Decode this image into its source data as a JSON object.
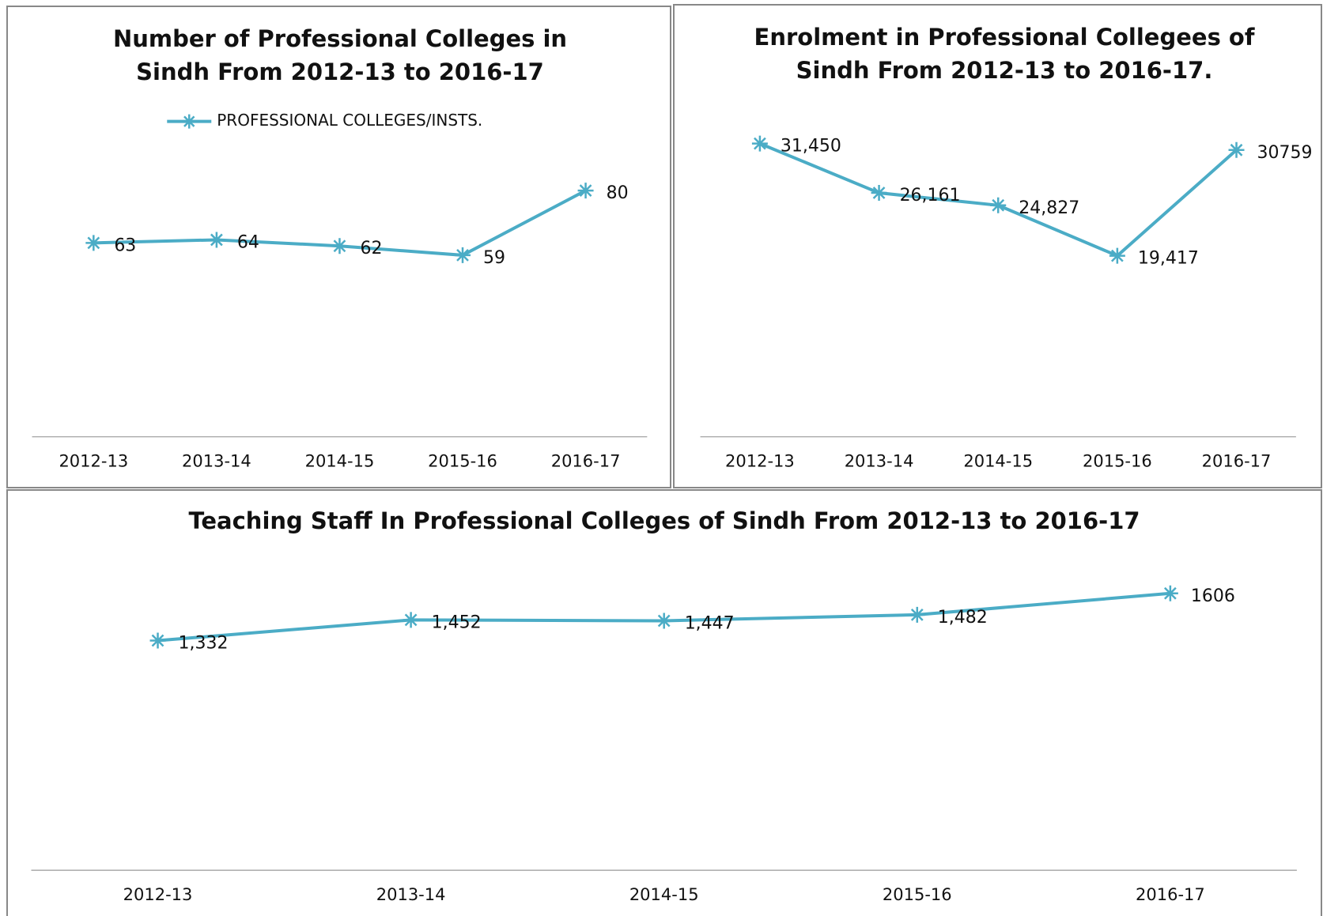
{
  "chart_data": [
    {
      "type": "line",
      "title": "Number of Professional  Colleges in Sindh From 2012-13 to 2016-17",
      "categories": [
        "2012-13",
        "2013-14",
        "2014-15",
        "2015-16",
        "2016-17"
      ],
      "series": [
        {
          "name": "PROFESSIONAL COLLEGES/INSTS.",
          "color": "#4bacc6",
          "values": [
            63,
            64,
            62,
            59,
            80
          ]
        }
      ],
      "legend": "top",
      "ylim": [
        0,
        100
      ]
    },
    {
      "type": "line",
      "title": "Enrolment in Professional  Collegees of Sindh From 2012-13 to 2016-17.",
      "categories": [
        "2012-13",
        "2013-14",
        "2014-15",
        "2015-16",
        "2016-17"
      ],
      "values": [
        31450,
        26161,
        24827,
        19417,
        30759
      ],
      "value_labels": [
        "31,450",
        "26,161",
        "24,827",
        "19,417",
        "30759"
      ],
      "color": "#4bacc6",
      "ylim": [
        0,
        35000
      ]
    },
    {
      "type": "line",
      "title": "Teaching Staff In Professional  Colleges of Sindh From 2012-13 to 2016-17",
      "categories": [
        "2012-13",
        "2013-14",
        "2014-15",
        "2015-16",
        "2016-17"
      ],
      "values": [
        1332,
        1452,
        1447,
        1482,
        1606
      ],
      "value_labels": [
        "1,332",
        "1,452",
        "1,447",
        "1,482",
        "1606"
      ],
      "color": "#4bacc6",
      "ylim": [
        0,
        1800
      ]
    }
  ]
}
